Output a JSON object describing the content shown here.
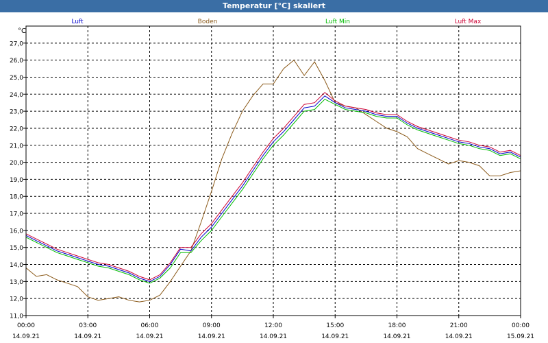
{
  "window": {
    "title": "Temperatur [°C] skaliert"
  },
  "chart_data": {
    "type": "line",
    "title": "Temperatur [°C] skaliert",
    "ylabel": "°C",
    "xlabel": "",
    "ylim": [
      11.0,
      28.0
    ],
    "xlim": [
      0,
      24
    ],
    "grid": true,
    "legend_position": "top",
    "y_ticks": [
      "11,0",
      "12,0",
      "13,0",
      "14,0",
      "15,0",
      "16,0",
      "17,0",
      "18,0",
      "19,0",
      "20,0",
      "21,0",
      "22,0",
      "23,0",
      "24,0",
      "25,0",
      "26,0",
      "27,0"
    ],
    "x_ticks": [
      {
        "time": "00:00",
        "date": "14.09.21"
      },
      {
        "time": "03:00",
        "date": "14.09.21"
      },
      {
        "time": "06:00",
        "date": "14.09.21"
      },
      {
        "time": "09:00",
        "date": "14.09.21"
      },
      {
        "time": "12:00",
        "date": "14.09.21"
      },
      {
        "time": "15:00",
        "date": "14.09.21"
      },
      {
        "time": "18:00",
        "date": "14.09.21"
      },
      {
        "time": "21:00",
        "date": "14.09.21"
      },
      {
        "time": "00:00",
        "date": "15.09.21"
      }
    ],
    "x": [
      0,
      0.5,
      1,
      1.5,
      2,
      2.5,
      3,
      3.5,
      4,
      4.5,
      5,
      5.5,
      6,
      6.5,
      7,
      7.5,
      8,
      8.5,
      9,
      9.5,
      10,
      10.5,
      11,
      11.5,
      12,
      12.5,
      13,
      13.5,
      14,
      14.5,
      15,
      15.5,
      16,
      16.5,
      17,
      17.5,
      18,
      18.5,
      19,
      19.5,
      20,
      20.5,
      21,
      21.5,
      22,
      22.5,
      23,
      23.5,
      24
    ],
    "series": [
      {
        "name": "Luft",
        "color": "#0000cc",
        "values": [
          15.7,
          15.4,
          15.1,
          14.8,
          14.6,
          14.4,
          14.2,
          14.0,
          13.9,
          13.7,
          13.5,
          13.2,
          13.0,
          13.3,
          14.0,
          14.9,
          14.8,
          15.6,
          16.2,
          17.0,
          17.8,
          18.6,
          19.5,
          20.4,
          21.2,
          21.8,
          22.5,
          23.2,
          23.3,
          23.9,
          23.5,
          23.2,
          23.1,
          23.0,
          22.8,
          22.7,
          22.7,
          22.3,
          22.0,
          21.8,
          21.6,
          21.4,
          21.2,
          21.1,
          20.9,
          20.8,
          20.5,
          20.6,
          20.3
        ]
      },
      {
        "name": "Boden",
        "color": "#8b5a1a",
        "values": [
          13.8,
          13.3,
          13.4,
          13.1,
          12.9,
          12.7,
          12.1,
          11.9,
          12.0,
          12.1,
          11.9,
          11.8,
          11.9,
          12.2,
          13.0,
          13.9,
          14.8,
          16.5,
          18.3,
          20.2,
          21.7,
          23.0,
          23.9,
          24.6,
          24.6,
          25.5,
          26.0,
          25.1,
          25.9,
          24.8,
          23.5,
          23.3,
          23.2,
          22.8,
          22.4,
          22.0,
          21.8,
          21.5,
          20.8,
          20.5,
          20.2,
          19.9,
          20.1,
          20.0,
          19.8,
          19.2,
          19.2,
          19.4,
          19.5
        ]
      },
      {
        "name": "Luft Min",
        "color": "#00bb00",
        "values": [
          15.6,
          15.3,
          15.0,
          14.7,
          14.5,
          14.3,
          14.1,
          13.9,
          13.8,
          13.6,
          13.4,
          13.1,
          12.9,
          13.2,
          13.8,
          14.7,
          14.7,
          15.4,
          16.0,
          16.8,
          17.6,
          18.4,
          19.3,
          20.2,
          21.0,
          21.6,
          22.3,
          23.0,
          23.1,
          23.7,
          23.4,
          23.1,
          23.0,
          22.9,
          22.7,
          22.6,
          22.6,
          22.2,
          21.9,
          21.7,
          21.5,
          21.3,
          21.1,
          21.0,
          20.8,
          20.7,
          20.4,
          20.5,
          20.2
        ]
      },
      {
        "name": "Luft Max",
        "color": "#cc0033",
        "values": [
          15.8,
          15.5,
          15.2,
          14.9,
          14.7,
          14.5,
          14.3,
          14.1,
          14.0,
          13.8,
          13.6,
          13.3,
          13.1,
          13.4,
          14.1,
          15.0,
          15.0,
          15.8,
          16.4,
          17.2,
          18.0,
          18.8,
          19.7,
          20.6,
          21.4,
          22.0,
          22.7,
          23.4,
          23.5,
          24.1,
          23.6,
          23.3,
          23.2,
          23.1,
          22.9,
          22.8,
          22.8,
          22.4,
          22.1,
          21.9,
          21.7,
          21.5,
          21.3,
          21.2,
          21.0,
          20.9,
          20.6,
          20.7,
          20.4
        ]
      }
    ]
  }
}
